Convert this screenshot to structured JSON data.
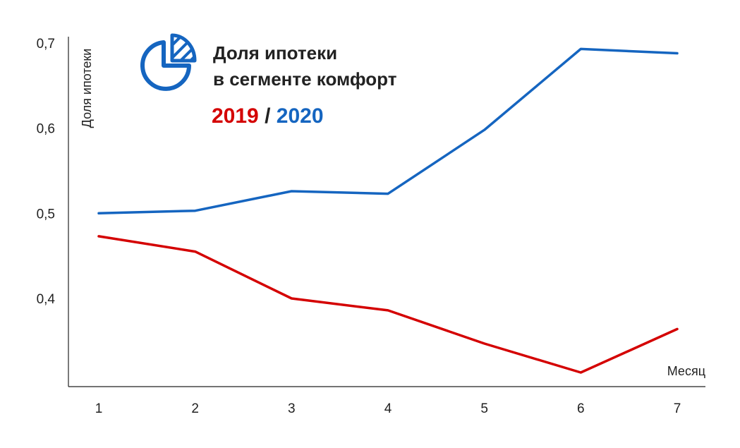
{
  "chart_data": {
    "type": "line",
    "title_lines": [
      "Доля ипотеки",
      "в сегменте комфорт"
    ],
    "title_icon": "pie-chart-icon",
    "xlabel": "Месяц",
    "ylabel": "Доля ипотеки",
    "x": [
      1,
      2,
      3,
      4,
      5,
      6,
      7
    ],
    "x_tick_labels": [
      "1",
      "2",
      "3",
      "4",
      "5",
      "6",
      "7"
    ],
    "y_ticks": [
      0.4,
      0.5,
      0.6,
      0.7
    ],
    "y_tick_labels": [
      "0,4",
      "0,5",
      "0,6",
      "0,7"
    ],
    "ylim": [
      0.29,
      0.71
    ],
    "grid": false,
    "legend_separator": " / ",
    "series": [
      {
        "name": "2019",
        "color": "#d40000",
        "values": [
          0.473,
          0.455,
          0.4,
          0.386,
          0.347,
          0.313,
          0.364
        ]
      },
      {
        "name": "2020",
        "color": "#1565c0",
        "values": [
          0.5,
          0.503,
          0.526,
          0.523,
          0.598,
          0.693,
          0.688
        ]
      }
    ],
    "icon_color": "#1565c0",
    "text_color": "#222222"
  }
}
